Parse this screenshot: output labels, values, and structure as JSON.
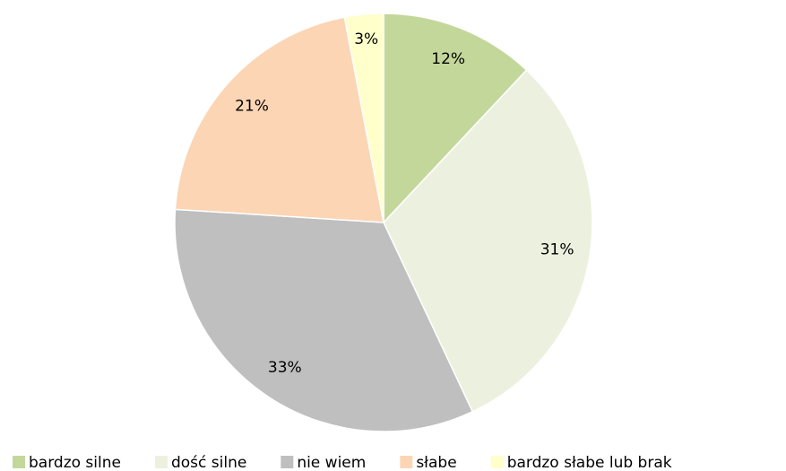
{
  "chart_data": {
    "type": "pie",
    "categories": [
      "bardzo silne",
      "dość silne",
      "nie wiem",
      "słabe",
      "bardzo słabe lub brak"
    ],
    "values": [
      12,
      31,
      33,
      21,
      3
    ],
    "value_labels": [
      "12%",
      "31%",
      "33%",
      "21%",
      "3%"
    ],
    "colors": [
      "#c4d79b",
      "#ebf1de",
      "#bfbfbf",
      "#fcd5b4",
      "#ffffcc"
    ],
    "legend": "bottom"
  }
}
